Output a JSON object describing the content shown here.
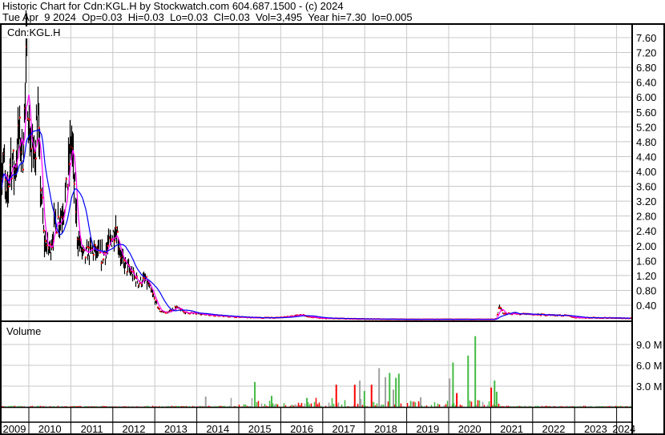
{
  "header": {
    "title": "Historic Chart for Cdn:KGL.H by Stockwatch.com 604.687.1500 - (c) 2024",
    "quote_line": "Tue Apr  9 2024  Op=0.03  Hi=0.03  Lo=0.03  Cl=0.03  Vol=3,495  Year hi=7.30  lo=0.005"
  },
  "price_panel": {
    "symbol_label": "Cdn:KGL.H"
  },
  "volume_panel": {
    "label": "Volume"
  },
  "colors": {
    "bars": "#000000",
    "close_dots": "#ff0000",
    "ma_short": "#ff00ff",
    "ma_long": "#0000ff",
    "vol_up": "#44bb44",
    "vol_down": "#ff0000",
    "vol_flat": "#a0a0a0",
    "grid": "#c8c8c8"
  },
  "chart_data": [
    {
      "type": "line",
      "name_label": "Cdn:KGL.H",
      "x_unit": "year",
      "ylim": [
        0,
        7.8
      ],
      "y_ticks": [
        "0.40",
        "0.80",
        "1.20",
        "1.60",
        "2.00",
        "2.40",
        "2.80",
        "3.20",
        "3.60",
        "4.00",
        "4.40",
        "4.80",
        "5.20",
        "5.60",
        "6.00",
        "6.40",
        "6.80",
        "7.20",
        "7.60"
      ],
      "grid": true,
      "price_points": [
        [
          2009.31,
          3.8
        ],
        [
          2009.4,
          4.2
        ],
        [
          2009.45,
          3.0
        ],
        [
          2009.55,
          4.4
        ],
        [
          2009.65,
          4.0
        ],
        [
          2009.75,
          5.0
        ],
        [
          2009.85,
          4.5
        ],
        [
          2009.93,
          7.0
        ],
        [
          2010.0,
          5.0
        ],
        [
          2010.1,
          4.3
        ],
        [
          2010.2,
          5.5
        ],
        [
          2010.25,
          4.0
        ],
        [
          2010.35,
          2.1
        ],
        [
          2010.5,
          1.9
        ],
        [
          2010.6,
          2.6
        ],
        [
          2010.75,
          2.8
        ],
        [
          2010.9,
          3.5
        ],
        [
          2011.0,
          5.0
        ],
        [
          2011.05,
          4.0
        ],
        [
          2011.15,
          2.2
        ],
        [
          2011.3,
          1.7
        ],
        [
          2011.5,
          1.9
        ],
        [
          2011.7,
          1.7
        ],
        [
          2011.85,
          1.9
        ],
        [
          2012.0,
          2.3
        ],
        [
          2012.05,
          2.6
        ],
        [
          2012.2,
          1.6
        ],
        [
          2012.4,
          1.3
        ],
        [
          2012.6,
          1.0
        ],
        [
          2012.75,
          1.1
        ],
        [
          2012.85,
          0.9
        ],
        [
          2013.0,
          0.5
        ],
        [
          2013.1,
          0.25
        ],
        [
          2013.3,
          0.2
        ],
        [
          2013.5,
          0.35
        ],
        [
          2013.7,
          0.2
        ],
        [
          2014.0,
          0.18
        ],
        [
          2014.5,
          0.12
        ],
        [
          2015.0,
          0.08
        ],
        [
          2015.5,
          0.06
        ],
        [
          2016.0,
          0.07
        ],
        [
          2016.5,
          0.14
        ],
        [
          2016.7,
          0.08
        ],
        [
          2017.0,
          0.05
        ],
        [
          2018.0,
          0.03
        ],
        [
          2019.0,
          0.02
        ],
        [
          2020.0,
          0.02
        ],
        [
          2021.1,
          0.02
        ],
        [
          2021.2,
          0.35
        ],
        [
          2021.3,
          0.18
        ],
        [
          2022.0,
          0.15
        ],
        [
          2022.8,
          0.12
        ],
        [
          2023.0,
          0.07
        ],
        [
          2024.27,
          0.05
        ]
      ]
    },
    {
      "type": "bar",
      "x_unit": "year",
      "ylim": [
        0,
        11.5
      ],
      "y_ticks": [
        "3.0 M",
        "6.0 M",
        "9.0 M"
      ],
      "grid": true,
      "volume_spikes_millions": [
        [
          2014.21,
          1.5,
          "flat"
        ],
        [
          2015.38,
          3.6,
          "up"
        ],
        [
          2015.78,
          1.6,
          "up"
        ],
        [
          2016.62,
          1.3,
          "up"
        ],
        [
          2017.32,
          3.2,
          "down"
        ],
        [
          2017.76,
          3.2,
          "down"
        ],
        [
          2017.88,
          3.8,
          "flat"
        ],
        [
          2017.99,
          2.3,
          "up"
        ],
        [
          2018.16,
          3.2,
          "down"
        ],
        [
          2018.34,
          5.6,
          "flat"
        ],
        [
          2018.49,
          4.3,
          "flat"
        ],
        [
          2018.59,
          4.9,
          "up"
        ],
        [
          2018.68,
          2.5,
          "flat"
        ],
        [
          2018.74,
          4.2,
          "up"
        ],
        [
          2018.81,
          4.8,
          "up"
        ],
        [
          2019.33,
          1.4,
          "flat"
        ],
        [
          2020.02,
          4.1,
          "flat"
        ],
        [
          2020.1,
          6.4,
          "up"
        ],
        [
          2020.19,
          2.0,
          "down"
        ],
        [
          2020.46,
          7.4,
          "up"
        ],
        [
          2020.63,
          10.2,
          "up"
        ],
        [
          2021.01,
          2.8,
          "down"
        ],
        [
          2021.09,
          3.8,
          "up"
        ],
        [
          2021.14,
          2.2,
          "up"
        ]
      ]
    }
  ],
  "x_axis": {
    "years": [
      "2009",
      "2010",
      "2011",
      "2012",
      "2013",
      "2014",
      "2015",
      "2016",
      "2017",
      "2018",
      "2019",
      "2020",
      "2021",
      "2022",
      "2023",
      "2024"
    ]
  }
}
